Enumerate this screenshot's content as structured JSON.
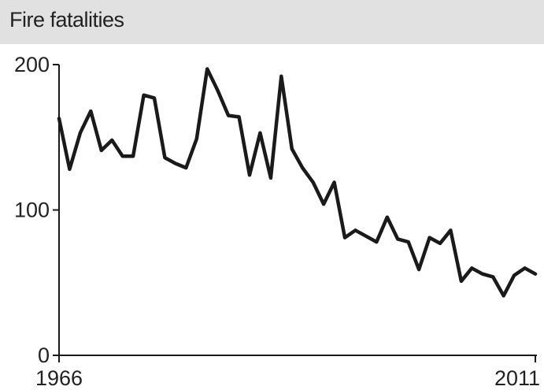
{
  "chart_data": {
    "type": "line",
    "title": "Fire fatalities",
    "xlabel": "",
    "ylabel": "",
    "xlim": [
      1966,
      2011
    ],
    "ylim": [
      0,
      200
    ],
    "y_ticks": [
      0,
      100,
      200
    ],
    "x_tick_labels": [
      "1966",
      "2011"
    ],
    "grid": false,
    "line_color": "#1a1a1a",
    "series": [
      {
        "x": [
          1966,
          1967,
          1968,
          1969,
          1970,
          1971,
          1972,
          1973,
          1974,
          1975,
          1976,
          1977,
          1978,
          1979,
          1980,
          1981,
          1982,
          1983,
          1984,
          1985,
          1986,
          1987,
          1988,
          1989,
          1990,
          1991,
          1992,
          1993,
          1994,
          1995,
          1996,
          1997,
          1998,
          1999,
          2000,
          2001,
          2002,
          2003,
          2004,
          2005,
          2006,
          2007,
          2008,
          2009,
          2010,
          2011
        ],
        "values": [
          163,
          128,
          153,
          168,
          141,
          148,
          137,
          137,
          179,
          177,
          136,
          132,
          129,
          149,
          197,
          182,
          165,
          164,
          124,
          153,
          122,
          192,
          142,
          129,
          119,
          104,
          119,
          81,
          86,
          82,
          78,
          95,
          80,
          78,
          59,
          81,
          77,
          86,
          51,
          60,
          56,
          54,
          41,
          55,
          60,
          56
        ]
      }
    ]
  }
}
